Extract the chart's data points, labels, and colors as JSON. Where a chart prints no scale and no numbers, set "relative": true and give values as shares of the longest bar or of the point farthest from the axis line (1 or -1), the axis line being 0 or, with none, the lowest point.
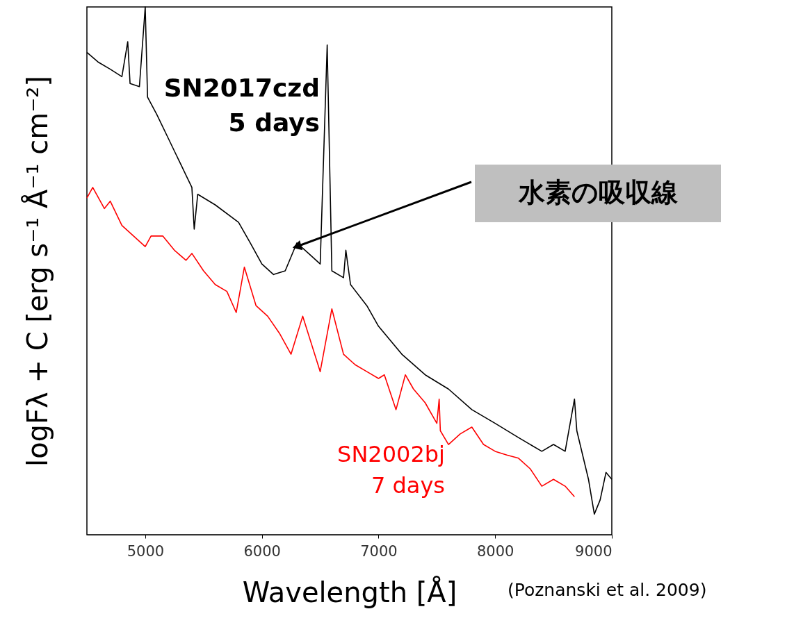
{
  "chart_data": {
    "type": "line",
    "relative": true,
    "xlabel": "Wavelength  [Å]",
    "ylabel": "logFλ + C  [erg s⁻¹ Å⁻¹ cm⁻²]",
    "xlim": [
      4500,
      9000
    ],
    "xticks": [
      5000,
      6000,
      7000,
      8000,
      9000
    ],
    "grid": false,
    "marker": "none",
    "line_style": "solid",
    "annotations": [
      "水素の吸収線",
      "(Poznanski et al. 2009)"
    ],
    "series": [
      {
        "name": "SN2017czd\n5 days",
        "color": "#000000",
        "x": [
          4500,
          4600,
          4700,
          4800,
          4850,
          4870,
          4950,
          5000,
          5020,
          5100,
          5200,
          5300,
          5400,
          5420,
          5450,
          5600,
          5800,
          5900,
          6000,
          6100,
          6200,
          6300,
          6400,
          6500,
          6560,
          6600,
          6700,
          6720,
          6760,
          6900,
          7000,
          7200,
          7400,
          7600,
          7800,
          8000,
          8200,
          8400,
          8500,
          8600,
          8680,
          8700,
          8800,
          8850,
          8900,
          8950,
          9000
        ],
        "values": [
          0.914,
          0.895,
          0.882,
          0.868,
          0.934,
          0.855,
          0.849,
          1.0,
          0.829,
          0.796,
          0.75,
          0.704,
          0.658,
          0.579,
          0.645,
          0.625,
          0.592,
          0.553,
          0.513,
          0.493,
          0.5,
          0.553,
          0.533,
          0.513,
          0.928,
          0.5,
          0.487,
          0.539,
          0.474,
          0.434,
          0.395,
          0.342,
          0.303,
          0.276,
          0.237,
          0.211,
          0.184,
          0.158,
          0.171,
          0.158,
          0.257,
          0.197,
          0.105,
          0.039,
          0.066,
          0.118,
          0.105
        ]
      },
      {
        "name": "SN2002bj\n7 days",
        "color": "#ff0000",
        "x": [
          4500,
          4550,
          4650,
          4700,
          4800,
          4900,
          5000,
          5050,
          5150,
          5250,
          5350,
          5400,
          5500,
          5600,
          5700,
          5780,
          5850,
          5950,
          6050,
          6150,
          6250,
          6350,
          6500,
          6600,
          6700,
          6800,
          6900,
          7000,
          7050,
          7150,
          7230,
          7300,
          7400,
          7500,
          7520,
          7530,
          7600,
          7700,
          7800,
          7900,
          8000,
          8100,
          8200,
          8300,
          8400,
          8500,
          8600,
          8680
        ],
        "values": [
          0.638,
          0.658,
          0.618,
          0.632,
          0.586,
          0.566,
          0.546,
          0.566,
          0.566,
          0.539,
          0.52,
          0.533,
          0.5,
          0.474,
          0.461,
          0.421,
          0.507,
          0.434,
          0.414,
          0.382,
          0.342,
          0.414,
          0.309,
          0.428,
          0.342,
          0.322,
          0.309,
          0.296,
          0.303,
          0.237,
          0.303,
          0.276,
          0.25,
          0.211,
          0.257,
          0.197,
          0.171,
          0.191,
          0.204,
          0.171,
          0.158,
          0.151,
          0.145,
          0.125,
          0.092,
          0.105,
          0.092,
          0.072
        ]
      }
    ]
  }
}
